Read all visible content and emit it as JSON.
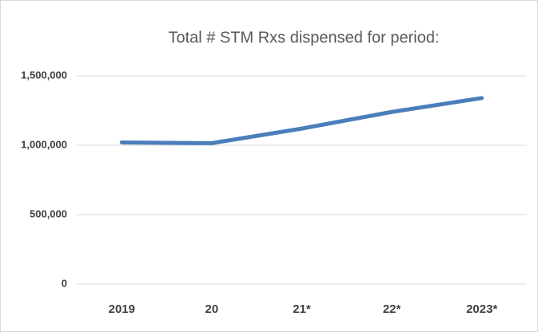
{
  "chart_data": {
    "type": "line",
    "title": "Total # STM Rxs dispensed for period:",
    "categories": [
      "2019",
      "20",
      "21*",
      "22*",
      "2023*"
    ],
    "values": [
      1020000,
      1015000,
      1120000,
      1240000,
      1340000
    ],
    "color": "#4a7ebb",
    "ylim": [
      0,
      1500000
    ],
    "yticks": [
      0,
      {
        "value": 500000,
        "label": "500,000"
      },
      {
        "value": 1000000,
        "label": "1,000,000"
      },
      {
        "value": 1500000,
        "label": "1,500,000"
      }
    ],
    "grid": true
  }
}
